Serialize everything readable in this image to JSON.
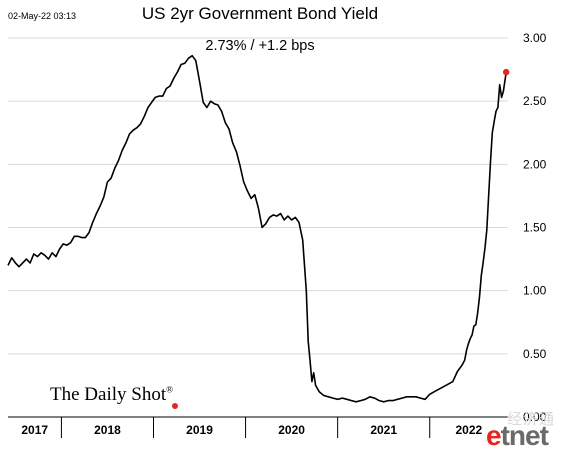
{
  "timestamp": "02-May-22 03:13",
  "title": "US 2yr Government Bond Yield",
  "subtitle": "2.73%  /  +1.2 bps",
  "logo": {
    "text": "The Daily Shot",
    "mark": "®",
    "accent_color": "#e8241f"
  },
  "watermark": {
    "cn": "经济通",
    "e": "e",
    "rest": "tnet"
  },
  "chart_data": {
    "type": "line",
    "title": "US 2yr Government Bond Yield",
    "subtitle": "2.73%  /  +1.2 bps",
    "xlabel": "",
    "ylabel": "",
    "xlim": [
      2016.92,
      2022.35
    ],
    "ylim": [
      0,
      3.0
    ],
    "y_ticks": [
      0.0,
      0.5,
      1.0,
      1.5,
      2.0,
      2.5,
      3.0
    ],
    "y_tick_labels": [
      "0.00",
      "0.50",
      "1.00",
      "1.50",
      "2.00",
      "2.50",
      "3.00"
    ],
    "y_axis_position": "right",
    "grid": true,
    "x_category_labels": [
      {
        "label": "2017",
        "from": 2016.92,
        "to": 2017.5
      },
      {
        "label": "2018",
        "from": 2017.5,
        "to": 2018.5
      },
      {
        "label": "2019",
        "from": 2018.5,
        "to": 2019.5
      },
      {
        "label": "2020",
        "from": 2019.5,
        "to": 2020.5
      },
      {
        "label": "2021",
        "from": 2020.5,
        "to": 2021.5
      },
      {
        "label": "2022",
        "from": 2021.5,
        "to": 2022.35
      }
    ],
    "x_dividers": [
      2017.5,
      2018.5,
      2019.5,
      2020.5,
      2021.5
    ],
    "line_color": "#000000",
    "end_marker_color": "#e8241f",
    "series": [
      {
        "x": [
          2016.92,
          2016.96,
          2017.0,
          2017.04,
          2017.08,
          2017.12,
          2017.16,
          2017.2,
          2017.24,
          2017.28,
          2017.32,
          2017.36,
          2017.4,
          2017.44,
          2017.48,
          2017.52,
          2017.56,
          2017.6,
          2017.64,
          2017.68,
          2017.72,
          2017.76,
          2017.8,
          2017.84,
          2017.88,
          2017.92,
          2017.96,
          2018.0,
          2018.04,
          2018.08,
          2018.12,
          2018.16,
          2018.2,
          2018.24,
          2018.28,
          2018.32,
          2018.36,
          2018.4,
          2018.44,
          2018.48,
          2018.52,
          2018.56,
          2018.6,
          2018.64,
          2018.68,
          2018.72,
          2018.76,
          2018.8,
          2018.84,
          2018.88,
          2018.92,
          2018.96,
          2019.0,
          2019.04,
          2019.08,
          2019.12,
          2019.16,
          2019.2,
          2019.24,
          2019.28,
          2019.32,
          2019.36,
          2019.4,
          2019.44,
          2019.48,
          2019.52,
          2019.56,
          2019.6,
          2019.64,
          2019.68,
          2019.72,
          2019.76,
          2019.8,
          2019.84,
          2019.88,
          2019.92,
          2019.96,
          2020.0,
          2020.04,
          2020.08,
          2020.12,
          2020.16,
          2020.18,
          2020.2,
          2020.22,
          2020.24,
          2020.26,
          2020.3,
          2020.35,
          2020.4,
          2020.45,
          2020.5,
          2020.55,
          2020.6,
          2020.65,
          2020.7,
          2020.75,
          2020.8,
          2020.85,
          2020.9,
          2020.95,
          2021.0,
          2021.05,
          2021.1,
          2021.15,
          2021.2,
          2021.25,
          2021.3,
          2021.35,
          2021.4,
          2021.45,
          2021.5,
          2021.55,
          2021.6,
          2021.65,
          2021.7,
          2021.75,
          2021.8,
          2021.85,
          2021.88,
          2021.9,
          2021.92,
          2021.94,
          2021.96,
          2021.98,
          2022.0,
          2022.02,
          2022.04,
          2022.06,
          2022.08,
          2022.1,
          2022.12,
          2022.14,
          2022.16,
          2022.18,
          2022.2,
          2022.22,
          2022.24,
          2022.26,
          2022.28,
          2022.3,
          2022.33
        ],
        "y": [
          1.2,
          1.26,
          1.22,
          1.19,
          1.22,
          1.25,
          1.22,
          1.29,
          1.27,
          1.3,
          1.28,
          1.25,
          1.3,
          1.27,
          1.33,
          1.37,
          1.36,
          1.38,
          1.43,
          1.43,
          1.42,
          1.42,
          1.46,
          1.54,
          1.61,
          1.67,
          1.74,
          1.86,
          1.89,
          1.97,
          2.03,
          2.11,
          2.17,
          2.24,
          2.27,
          2.29,
          2.32,
          2.38,
          2.45,
          2.49,
          2.53,
          2.54,
          2.54,
          2.6,
          2.62,
          2.68,
          2.73,
          2.79,
          2.8,
          2.84,
          2.86,
          2.82,
          2.66,
          2.49,
          2.45,
          2.5,
          2.48,
          2.47,
          2.42,
          2.33,
          2.28,
          2.17,
          2.1,
          1.99,
          1.86,
          1.79,
          1.73,
          1.76,
          1.65,
          1.5,
          1.53,
          1.58,
          1.6,
          1.59,
          1.61,
          1.56,
          1.59,
          1.56,
          1.58,
          1.54,
          1.4,
          1.0,
          0.6,
          0.45,
          0.28,
          0.35,
          0.25,
          0.2,
          0.17,
          0.16,
          0.15,
          0.14,
          0.15,
          0.14,
          0.13,
          0.12,
          0.13,
          0.14,
          0.16,
          0.15,
          0.13,
          0.12,
          0.13,
          0.13,
          0.14,
          0.15,
          0.16,
          0.16,
          0.16,
          0.15,
          0.14,
          0.18,
          0.2,
          0.22,
          0.24,
          0.26,
          0.28,
          0.36,
          0.41,
          0.45,
          0.53,
          0.58,
          0.62,
          0.65,
          0.72,
          0.73,
          0.82,
          0.95,
          1.12,
          1.22,
          1.34,
          1.48,
          1.76,
          2.02,
          2.25,
          2.34,
          2.42,
          2.45,
          2.63,
          2.53,
          2.58,
          2.73
        ]
      }
    ],
    "last_value": 2.73,
    "last_change_bps": 1.2
  }
}
